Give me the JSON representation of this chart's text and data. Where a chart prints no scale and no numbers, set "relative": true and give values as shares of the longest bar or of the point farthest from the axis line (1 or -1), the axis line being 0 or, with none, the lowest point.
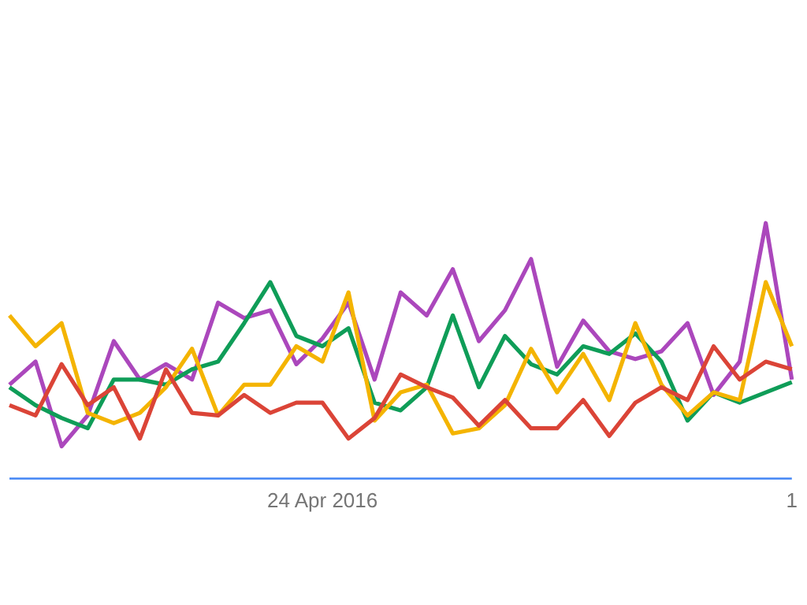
{
  "chart_data": {
    "type": "line",
    "relative": true,
    "legend": false,
    "marker": "none",
    "line_style": "solid",
    "categories": [
      null,
      null,
      null,
      null,
      null,
      null,
      null,
      null,
      null,
      null,
      null,
      null,
      "24 Apr 2016",
      null,
      null,
      null,
      null,
      null,
      null,
      null,
      null,
      null,
      null,
      null,
      null,
      null,
      null,
      null,
      null,
      null,
      "1"
    ],
    "series": [
      {
        "color": "#4285f4",
        "values": [
          0,
          0,
          0,
          0,
          0,
          0,
          0,
          0,
          0,
          0,
          0,
          0,
          0,
          0,
          0,
          0,
          0,
          0,
          0,
          0,
          0,
          0,
          0,
          0,
          0,
          0,
          0,
          0,
          0,
          0,
          0
        ]
      },
      {
        "color": "#db4437",
        "values": [
          0.29,
          0.25,
          0.45,
          0.29,
          0.36,
          0.16,
          0.43,
          0.26,
          0.25,
          0.33,
          0.26,
          0.3,
          0.3,
          0.16,
          0.24,
          0.41,
          0.36,
          0.32,
          0.21,
          0.31,
          0.2,
          0.2,
          0.31,
          0.17,
          0.3,
          0.36,
          0.31,
          0.52,
          0.39,
          0.46,
          0.43
        ]
      },
      {
        "color": "#f4b400",
        "values": [
          0.64,
          0.52,
          0.61,
          0.26,
          0.22,
          0.26,
          0.36,
          0.51,
          0.25,
          0.37,
          0.37,
          0.52,
          0.46,
          0.73,
          0.23,
          0.34,
          0.37,
          0.18,
          0.2,
          0.29,
          0.51,
          0.34,
          0.49,
          0.31,
          0.61,
          0.37,
          0.25,
          0.34,
          0.31,
          0.77,
          0.52
        ]
      },
      {
        "color": "#0f9d58",
        "values": [
          0.36,
          0.29,
          0.24,
          0.2,
          0.39,
          0.39,
          0.37,
          0.43,
          0.46,
          0.61,
          0.77,
          0.56,
          0.52,
          0.59,
          0.3,
          0.27,
          0.36,
          0.64,
          0.36,
          0.56,
          0.45,
          0.41,
          0.52,
          0.49,
          0.57,
          0.46,
          0.23,
          0.34,
          0.3,
          0.34,
          0.38
        ]
      },
      {
        "color": "#ab47bc",
        "values": [
          0.37,
          0.46,
          0.13,
          0.25,
          0.54,
          0.39,
          0.45,
          0.39,
          0.69,
          0.63,
          0.66,
          0.45,
          0.55,
          0.69,
          0.39,
          0.73,
          0.64,
          0.82,
          0.54,
          0.66,
          0.86,
          0.44,
          0.62,
          0.5,
          0.47,
          0.5,
          0.61,
          0.33,
          0.46,
          1,
          0.39
        ]
      }
    ]
  }
}
